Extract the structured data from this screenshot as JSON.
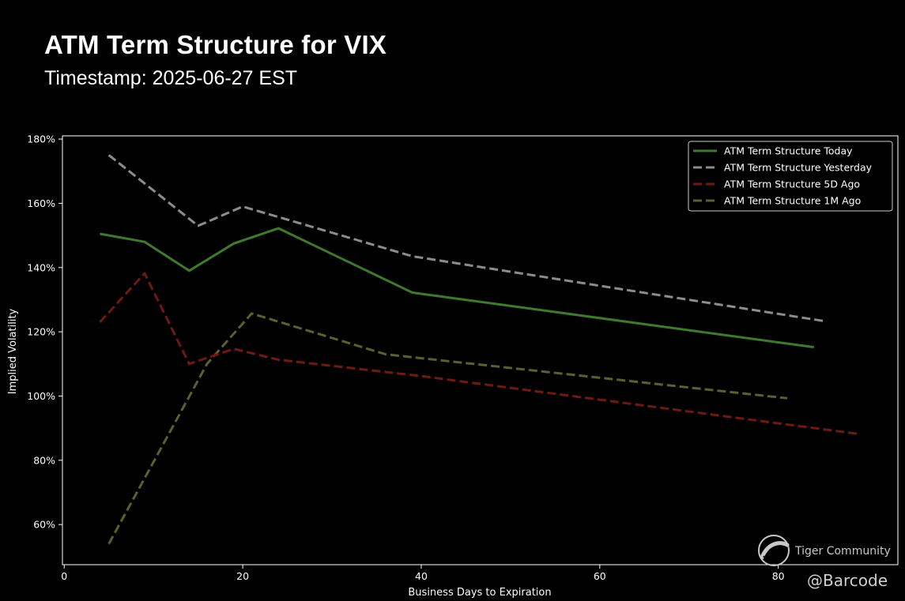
{
  "header": {
    "title": "ATM Term Structure for VIX",
    "subtitle": "Timestamp: 2025-06-27 EST"
  },
  "watermark": {
    "brand": "Tiger Community",
    "handle": "@Barcode",
    "icon": "tiger-logo-icon"
  },
  "chart_data": {
    "type": "line",
    "title": "ATM Term Structure for VIX",
    "subtitle": "Timestamp: 2025-06-27 EST",
    "xlabel": "Business Days to Expiration",
    "ylabel": "Implied Volatility",
    "xlim": [
      -0.2,
      93.4
    ],
    "ylim": [
      47.5,
      181.0
    ],
    "xticks": [
      0,
      20,
      40,
      60,
      80
    ],
    "xtick_labels": [
      "0",
      "20",
      "40",
      "60",
      "80"
    ],
    "yticks": [
      60,
      80,
      100,
      120,
      140,
      160,
      180
    ],
    "ytick_labels": [
      "60%",
      "80%",
      "100%",
      "120%",
      "140%",
      "160%",
      "180%"
    ],
    "grid": false,
    "legend_position": "top-right",
    "series": [
      {
        "name": "ATM Term Structure Today",
        "color": "#3d7a2c",
        "dash": "solid",
        "x": [
          4,
          9,
          14,
          19,
          24,
          39,
          84
        ],
        "y": [
          150.5,
          148.0,
          139.0,
          147.5,
          152.2,
          132.2,
          115.2
        ]
      },
      {
        "name": "ATM Term Structure Yesterday",
        "color": "#8c8c8c",
        "dash": "dashed",
        "x": [
          5,
          15,
          20,
          39,
          85
        ],
        "y": [
          175.0,
          153.0,
          159.0,
          143.5,
          123.4
        ]
      },
      {
        "name": "ATM Term Structure 5D Ago",
        "color": "#6e1a12",
        "dash": "dashed",
        "x": [
          4,
          9,
          14,
          19,
          24,
          40,
          89
        ],
        "y": [
          123.0,
          138.2,
          110.0,
          114.7,
          111.3,
          106.2,
          88.2
        ]
      },
      {
        "name": "ATM Term Structure 1M Ago",
        "color": "#5e5e2e",
        "dash": "dashed",
        "x": [
          5,
          16,
          21,
          36,
          81
        ],
        "y": [
          54.0,
          110.0,
          125.7,
          113.0,
          99.3
        ]
      }
    ]
  }
}
